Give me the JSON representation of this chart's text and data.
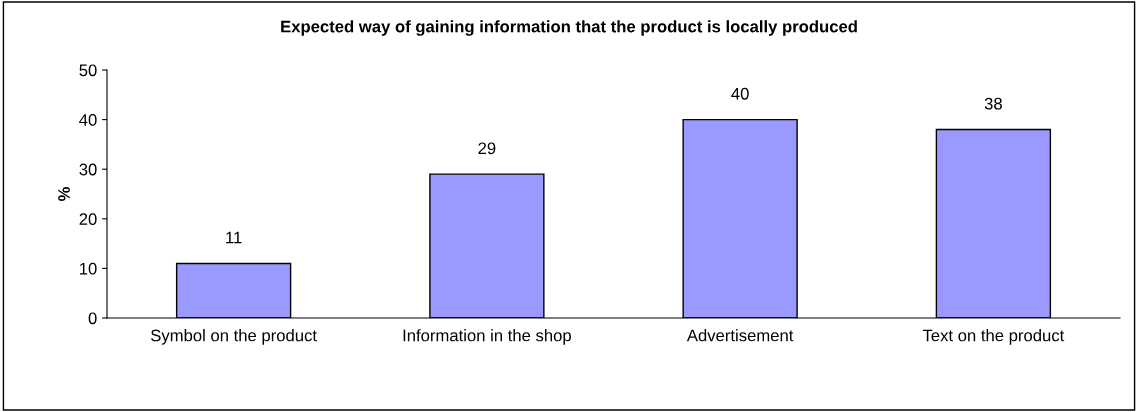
{
  "chart_data": {
    "type": "bar",
    "title": "Expected way of gaining information that the product is locally produced",
    "ylabel": "%",
    "categories": [
      "Symbol on the product",
      "Information in the shop",
      "Advertisement",
      "Text on the product"
    ],
    "values": [
      11,
      29,
      40,
      38
    ],
    "color": "#9999ff",
    "ylim": [
      0,
      50
    ],
    "yticks": [
      0,
      10,
      20,
      30,
      40,
      50
    ],
    "grid": false,
    "data_labels": true
  }
}
